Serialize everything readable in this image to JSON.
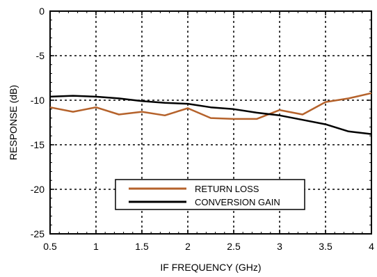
{
  "chart_data": {
    "type": "line",
    "title": "",
    "xlabel": "IF FREQUENCY (GHz)",
    "ylabel": "RESPONSE (dB)",
    "xlim": [
      0.5,
      4
    ],
    "ylim": [
      -25,
      0
    ],
    "x_ticks": [
      0.5,
      1,
      1.5,
      2,
      2.5,
      3,
      3.5,
      4
    ],
    "x_tick_labels": [
      "0.5",
      "1",
      "1.5",
      "2",
      "2.5",
      "3",
      "3.5",
      "4"
    ],
    "y_ticks": [
      0,
      -5,
      -10,
      -15,
      -20,
      -25
    ],
    "y_tick_labels": [
      "0",
      "-5",
      "-10",
      "-15",
      "-20",
      "-25"
    ],
    "grid": true,
    "grid_style": "dotted",
    "legend_position": "lower-center",
    "series": [
      {
        "name": "RETURN LOSS",
        "color": "#b5622b",
        "x": [
          0.5,
          0.75,
          1.0,
          1.25,
          1.5,
          1.75,
          2.0,
          2.25,
          2.5,
          2.75,
          3.0,
          3.25,
          3.5,
          3.75,
          4.0
        ],
        "values": [
          -10.8,
          -11.3,
          -10.8,
          -11.6,
          -11.3,
          -11.7,
          -10.9,
          -12.0,
          -12.1,
          -12.1,
          -11.1,
          -11.6,
          -10.2,
          -9.8,
          -9.2
        ]
      },
      {
        "name": "CONVERSION GAIN",
        "color": "#000000",
        "x": [
          0.5,
          0.75,
          1.0,
          1.25,
          1.5,
          1.75,
          2.0,
          2.25,
          2.5,
          2.75,
          3.0,
          3.25,
          3.5,
          3.75,
          4.0
        ],
        "values": [
          -9.6,
          -9.5,
          -9.6,
          -9.8,
          -10.1,
          -10.3,
          -10.4,
          -10.8,
          -11.0,
          -11.4,
          -11.7,
          -12.2,
          -12.7,
          -13.5,
          -13.8
        ]
      }
    ]
  }
}
